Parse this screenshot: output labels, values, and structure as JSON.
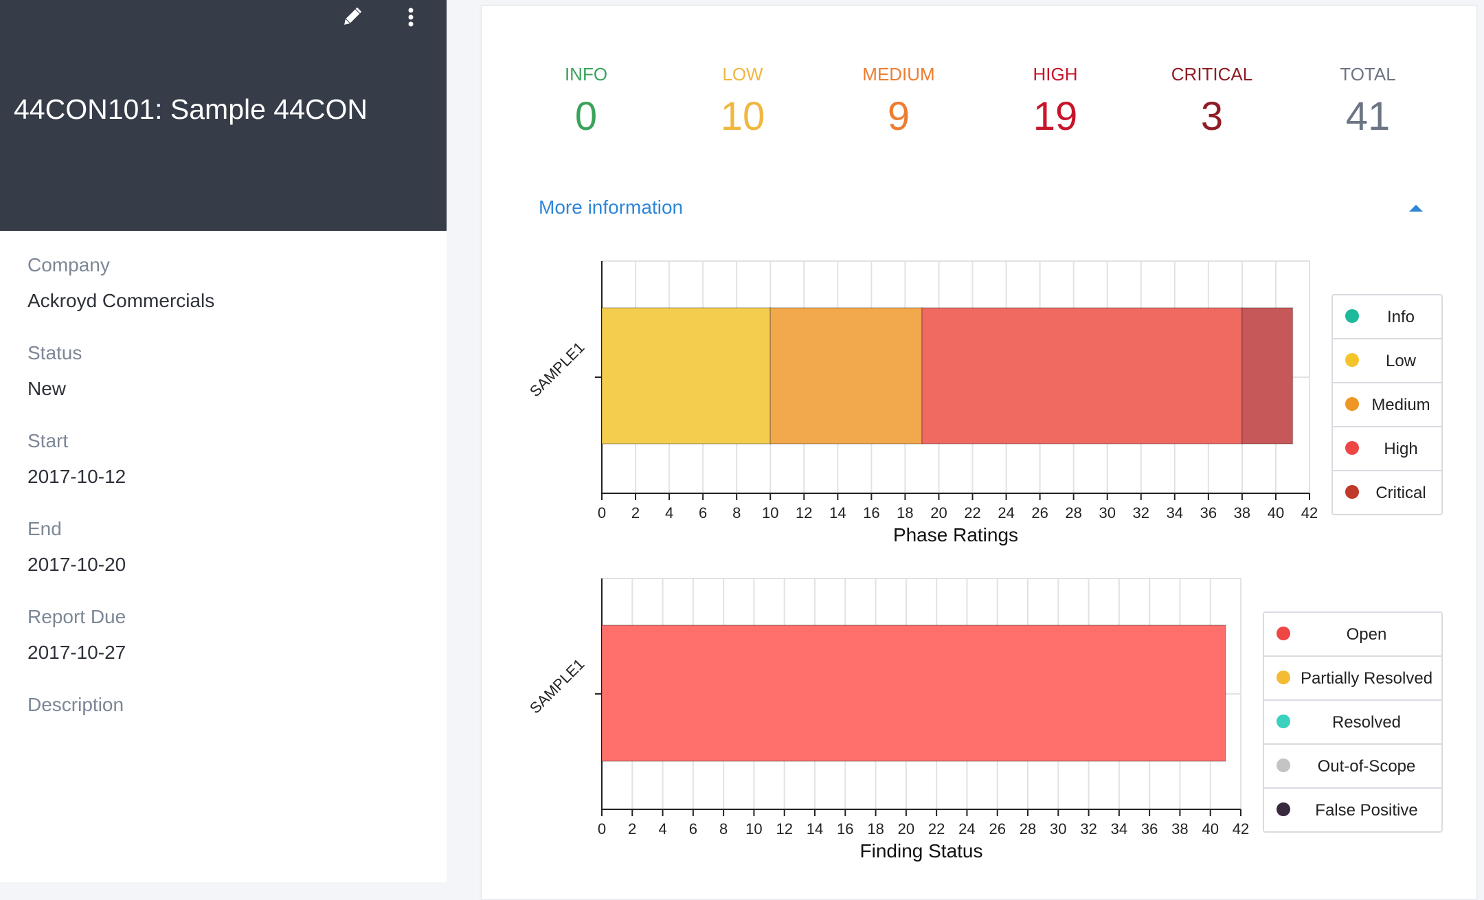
{
  "project": {
    "title": "44CON101: Sample 44CON",
    "details": [
      {
        "label": "Company",
        "value": "Ackroyd Commercials"
      },
      {
        "label": "Status",
        "value": "New"
      },
      {
        "label": "Start",
        "value": "2017-10-12"
      },
      {
        "label": "End",
        "value": "2017-10-20"
      },
      {
        "label": "Report Due",
        "value": "2017-10-27"
      },
      {
        "label": "Description",
        "value": ""
      }
    ]
  },
  "icons": {
    "edit": "pencil-icon",
    "menu": "kebab-menu-icon",
    "collapse": "caret-up-icon"
  },
  "counts": [
    {
      "label": "INFO",
      "value": "0",
      "color": "#3aa35a"
    },
    {
      "label": "LOW",
      "value": "10",
      "color": "#f0b73f"
    },
    {
      "label": "MEDIUM",
      "value": "9",
      "color": "#ed7d31"
    },
    {
      "label": "HIGH",
      "value": "19",
      "color": "#c8142a"
    },
    {
      "label": "CRITICAL",
      "value": "3",
      "color": "#8e1d25"
    },
    {
      "label": "TOTAL",
      "value": "41",
      "color": "#6c7584"
    }
  ],
  "more_info": "More information",
  "chart_data": [
    {
      "type": "bar",
      "orientation": "horizontal",
      "stacked": true,
      "title": "",
      "xlabel": "Phase Ratings",
      "ylabel": "",
      "categories": [
        "SAMPLE1"
      ],
      "xlim": [
        0,
        42
      ],
      "x_ticks": [
        0,
        2,
        4,
        6,
        8,
        10,
        12,
        14,
        16,
        18,
        20,
        22,
        24,
        26,
        28,
        30,
        32,
        34,
        36,
        38,
        40,
        42
      ],
      "grid": true,
      "legend_position": "right",
      "series": [
        {
          "name": "Info",
          "values": [
            0
          ],
          "color": "#1db99a"
        },
        {
          "name": "Low",
          "values": [
            10
          ],
          "color": "#f5cd4e"
        },
        {
          "name": "Medium",
          "values": [
            9
          ],
          "color": "#f2a94c"
        },
        {
          "name": "High",
          "values": [
            19
          ],
          "color": "#ef6b62"
        },
        {
          "name": "Critical",
          "values": [
            3
          ],
          "color": "#c7585a"
        }
      ],
      "legend_dots": [
        "#1db99a",
        "#f4c52b",
        "#ef9724",
        "#ee4545",
        "#c0392b"
      ]
    },
    {
      "type": "bar",
      "orientation": "horizontal",
      "stacked": true,
      "title": "",
      "xlabel": "Finding Status",
      "ylabel": "",
      "categories": [
        "SAMPLE1"
      ],
      "xlim": [
        0,
        42
      ],
      "x_ticks": [
        0,
        2,
        4,
        6,
        8,
        10,
        12,
        14,
        16,
        18,
        20,
        22,
        24,
        26,
        28,
        30,
        32,
        34,
        36,
        38,
        40,
        42
      ],
      "grid": true,
      "legend_position": "right",
      "series": [
        {
          "name": "Open",
          "values": [
            41
          ],
          "color": "#ff6f6b"
        },
        {
          "name": "Partially Resolved",
          "values": [
            0
          ],
          "color": "#f4c33f"
        },
        {
          "name": "Resolved",
          "values": [
            0
          ],
          "color": "#3fd0c1"
        },
        {
          "name": "Out-of-Scope",
          "values": [
            0
          ],
          "color": "#c9c9c9"
        },
        {
          "name": "False Positive",
          "values": [
            0
          ],
          "color": "#3b2a3e"
        }
      ],
      "legend_dots": [
        "#ee4545",
        "#f4bb35",
        "#3ad1bf",
        "#c4c4c4",
        "#382a3c"
      ]
    }
  ]
}
